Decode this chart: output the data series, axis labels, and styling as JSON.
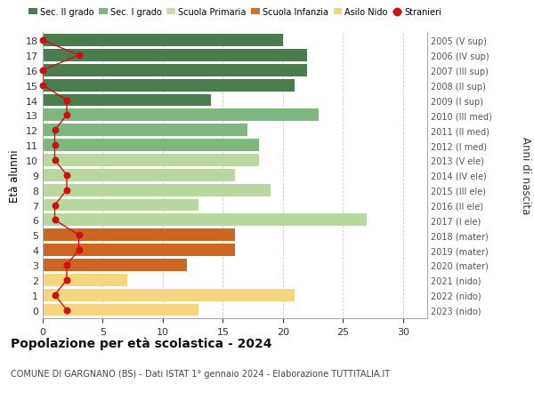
{
  "ages": [
    18,
    17,
    16,
    15,
    14,
    13,
    12,
    11,
    10,
    9,
    8,
    7,
    6,
    5,
    4,
    3,
    2,
    1,
    0
  ],
  "right_labels": [
    "2005 (V sup)",
    "2006 (IV sup)",
    "2007 (III sup)",
    "2008 (II sup)",
    "2009 (I sup)",
    "2010 (III med)",
    "2011 (II med)",
    "2012 (I med)",
    "2013 (V ele)",
    "2014 (IV ele)",
    "2015 (III ele)",
    "2016 (II ele)",
    "2017 (I ele)",
    "2018 (mater)",
    "2019 (mater)",
    "2020 (mater)",
    "2021 (nido)",
    "2022 (nido)",
    "2023 (nido)"
  ],
  "bar_values": [
    20,
    22,
    22,
    21,
    14,
    23,
    17,
    18,
    18,
    16,
    19,
    13,
    27,
    16,
    16,
    12,
    7,
    21,
    13
  ],
  "bar_colors": [
    "#4a7c4e",
    "#4a7c4e",
    "#4a7c4e",
    "#4a7c4e",
    "#4a7c4e",
    "#7fb87f",
    "#7fb87f",
    "#7fb87f",
    "#b8d8a0",
    "#b8d8a0",
    "#b8d8a0",
    "#b8d8a0",
    "#b8d8a0",
    "#cc6622",
    "#cc6622",
    "#cc6622",
    "#f5d580",
    "#f5d580",
    "#f5d580"
  ],
  "stranieri_values": [
    0,
    3,
    0,
    0,
    2,
    2,
    1,
    1,
    1,
    2,
    2,
    1,
    1,
    3,
    3,
    2,
    2,
    1,
    2
  ],
  "legend_labels": [
    "Sec. II grado",
    "Sec. I grado",
    "Scuola Primaria",
    "Scuola Infanzia",
    "Asilo Nido",
    "Stranieri"
  ],
  "legend_colors": [
    "#4a7c4e",
    "#7fb87f",
    "#c8dfa8",
    "#d4702a",
    "#f5d580",
    "#cc1111"
  ],
  "title": "Popolazione per età scolastica - 2024",
  "subtitle": "COMUNE DI GARGNANO (BS) - Dati ISTAT 1° gennaio 2024 - Elaborazione TUTTITALIA.IT",
  "ylabel_left": "Età alunni",
  "ylabel_right": "Anni di nascita",
  "xlim": [
    0,
    32
  ],
  "xticks": [
    0,
    5,
    10,
    15,
    20,
    25,
    30
  ],
  "stranieri_color": "#cc1111",
  "background_color": "#ffffff",
  "grid_color": "#cccccc"
}
